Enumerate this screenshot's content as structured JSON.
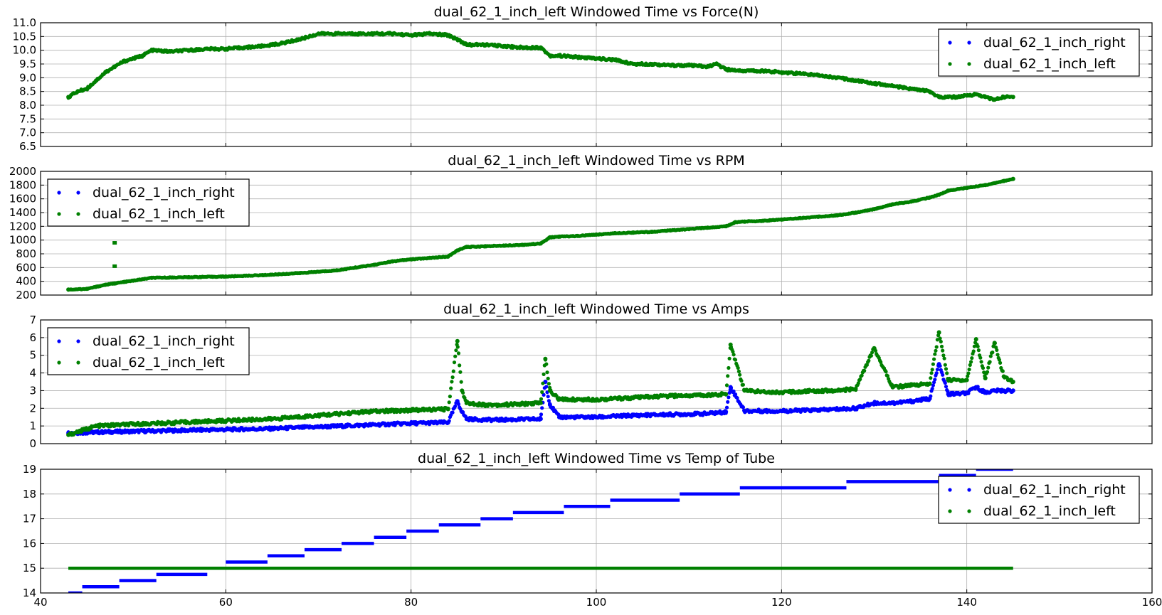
{
  "chart_data": [
    {
      "type": "scatter",
      "title": "dual_62_1_inch_left Windowed Time vs Force(N)",
      "xlim": [
        40,
        160
      ],
      "ylim": [
        6.5,
        11.0
      ],
      "x_ticks": [
        40,
        60,
        80,
        100,
        120,
        140,
        160
      ],
      "y_ticks": [
        "6.5",
        "7.0",
        "7.5",
        "8.0",
        "8.5",
        "9.0",
        "9.5",
        "10.0",
        "10.5",
        "11.0"
      ],
      "x_tick_labels_shown": false,
      "grid": true,
      "legend_position": "upper-right",
      "series": [
        {
          "name": "dual_62_1_inch_right",
          "color": "#0000ff",
          "visible_points": false
        },
        {
          "name": "dual_62_1_inch_left",
          "color": "#008000",
          "x": [
            43,
            44,
            45,
            46,
            47,
            48,
            49,
            50,
            51,
            52,
            54,
            56,
            58,
            60,
            62,
            64,
            66,
            68,
            70,
            72,
            74,
            76,
            78,
            80,
            82,
            84,
            85,
            86,
            88,
            90,
            92,
            94,
            95,
            96,
            98,
            100,
            102,
            104,
            106,
            108,
            110,
            112,
            113,
            114,
            116,
            118,
            120,
            122,
            124,
            126,
            128,
            130,
            132,
            134,
            136,
            137,
            138,
            139,
            140,
            141,
            142,
            143,
            144,
            145
          ],
          "y": [
            8.3,
            8.5,
            8.6,
            8.9,
            9.2,
            9.4,
            9.6,
            9.7,
            9.8,
            10.0,
            9.95,
            10.0,
            10.05,
            10.05,
            10.1,
            10.15,
            10.25,
            10.4,
            10.6,
            10.6,
            10.6,
            10.6,
            10.6,
            10.55,
            10.6,
            10.55,
            10.4,
            10.2,
            10.2,
            10.15,
            10.1,
            10.1,
            9.8,
            9.8,
            9.75,
            9.7,
            9.65,
            9.5,
            9.5,
            9.45,
            9.45,
            9.4,
            9.5,
            9.3,
            9.25,
            9.25,
            9.2,
            9.15,
            9.1,
            9.0,
            8.9,
            8.8,
            8.7,
            8.6,
            8.5,
            8.3,
            8.3,
            8.3,
            8.35,
            8.4,
            8.3,
            8.2,
            8.3,
            8.3
          ]
        }
      ]
    },
    {
      "type": "scatter",
      "title": "dual_62_1_inch_left Windowed Time vs RPM",
      "xlim": [
        40,
        160
      ],
      "ylim": [
        200,
        2000
      ],
      "x_ticks": [
        40,
        60,
        80,
        100,
        120,
        140,
        160
      ],
      "y_ticks": [
        "200",
        "400",
        "600",
        "800",
        "1000",
        "1200",
        "1400",
        "1600",
        "1800",
        "2000"
      ],
      "x_tick_labels_shown": false,
      "grid": true,
      "legend_position": "upper-left",
      "series": [
        {
          "name": "dual_62_1_inch_right",
          "color": "#0000ff",
          "visible_points": false
        },
        {
          "name": "dual_62_1_inch_left",
          "color": "#008000",
          "x": [
            43,
            45,
            46,
            47,
            48,
            49,
            50,
            52,
            56,
            60,
            64,
            68,
            72,
            74,
            76,
            78,
            80,
            82,
            84,
            85,
            86,
            88,
            90,
            92,
            94,
            95,
            96,
            98,
            100,
            102,
            104,
            106,
            108,
            110,
            112,
            114,
            115,
            116,
            118,
            120,
            122,
            124,
            126,
            128,
            130,
            132,
            134,
            136,
            137,
            138,
            140,
            142,
            144,
            145
          ],
          "y": [
            280,
            290,
            320,
            350,
            370,
            390,
            410,
            450,
            460,
            470,
            490,
            520,
            560,
            600,
            640,
            690,
            720,
            740,
            760,
            850,
            900,
            910,
            920,
            930,
            950,
            1040,
            1050,
            1060,
            1080,
            1100,
            1110,
            1120,
            1140,
            1160,
            1180,
            1200,
            1260,
            1270,
            1280,
            1300,
            1320,
            1340,
            1360,
            1400,
            1450,
            1520,
            1560,
            1620,
            1660,
            1720,
            1760,
            1800,
            1860,
            1890
          ]
        }
      ],
      "outliers_left": [
        {
          "x": 48,
          "y": 960
        },
        {
          "x": 48,
          "y": 620
        }
      ]
    },
    {
      "type": "scatter",
      "title": "dual_62_1_inch_left Windowed Time vs Amps",
      "xlim": [
        40,
        160
      ],
      "ylim": [
        0,
        7
      ],
      "x_ticks": [
        40,
        60,
        80,
        100,
        120,
        140,
        160
      ],
      "y_ticks": [
        "0",
        "1",
        "2",
        "3",
        "4",
        "5",
        "6",
        "7"
      ],
      "x_tick_labels_shown": false,
      "grid": true,
      "legend_position": "upper-left",
      "series": [
        {
          "name": "dual_62_1_inch_right",
          "color": "#0000ff",
          "x": [
            43,
            46,
            50,
            55,
            60,
            65,
            70,
            75,
            80,
            84,
            85,
            85.5,
            86,
            88,
            90,
            94,
            94.5,
            95,
            96,
            100,
            104,
            108,
            112,
            114,
            114.5,
            116,
            120,
            124,
            126,
            128,
            130,
            132,
            134,
            136,
            137,
            138,
            140,
            141,
            142,
            143,
            144,
            145
          ],
          "y": [
            0.6,
            0.65,
            0.7,
            0.75,
            0.8,
            0.85,
            0.95,
            1.05,
            1.15,
            1.2,
            2.4,
            1.8,
            1.4,
            1.35,
            1.35,
            1.4,
            3.5,
            2.2,
            1.5,
            1.5,
            1.6,
            1.65,
            1.7,
            1.8,
            3.2,
            1.85,
            1.85,
            1.9,
            1.95,
            2.0,
            2.3,
            2.3,
            2.4,
            2.55,
            4.5,
            2.8,
            2.85,
            3.2,
            2.9,
            3.0,
            3.0,
            3.0
          ]
        },
        {
          "name": "dual_62_1_inch_left",
          "color": "#008000",
          "x": [
            43,
            46,
            50,
            55,
            60,
            65,
            70,
            75,
            80,
            84,
            85,
            85.5,
            86,
            88,
            90,
            94,
            94.5,
            95,
            96,
            100,
            104,
            108,
            112,
            114,
            114.5,
            116,
            120,
            124,
            126,
            128,
            130,
            132,
            134,
            136,
            137,
            138,
            140,
            141,
            142,
            143,
            144,
            145
          ],
          "y": [
            0.5,
            1.0,
            1.1,
            1.2,
            1.3,
            1.4,
            1.6,
            1.8,
            1.9,
            1.95,
            5.8,
            3.0,
            2.3,
            2.2,
            2.2,
            2.3,
            4.8,
            3.0,
            2.5,
            2.5,
            2.6,
            2.7,
            2.75,
            2.8,
            5.6,
            3.0,
            2.9,
            3.0,
            3.0,
            3.1,
            5.4,
            3.2,
            3.3,
            3.4,
            6.3,
            3.6,
            3.6,
            5.9,
            3.7,
            5.7,
            3.8,
            3.5
          ]
        }
      ]
    },
    {
      "type": "scatter",
      "title": "dual_62_1_inch_left Windowed Time vs Temp of Tube",
      "xlim": [
        40,
        160
      ],
      "ylim": [
        14,
        19
      ],
      "x_ticks": [
        "40",
        "60",
        "80",
        "100",
        "120",
        "140",
        "160"
      ],
      "y_ticks": [
        "14",
        "15",
        "16",
        "17",
        "18",
        "19"
      ],
      "x_tick_labels_shown": true,
      "grid": true,
      "legend_position": "upper-right",
      "series": [
        {
          "name": "dual_62_1_inch_right",
          "color": "#0000ff",
          "steps": [
            {
              "x0": 43,
              "x1": 44.5,
              "y": 14.0
            },
            {
              "x0": 44.5,
              "x1": 48.5,
              "y": 14.25
            },
            {
              "x0": 48.5,
              "x1": 52.5,
              "y": 14.5
            },
            {
              "x0": 52.5,
              "x1": 58,
              "y": 14.75
            },
            {
              "x0": 60,
              "x1": 64.5,
              "y": 15.25
            },
            {
              "x0": 64.5,
              "x1": 68.5,
              "y": 15.5
            },
            {
              "x0": 68.5,
              "x1": 72.5,
              "y": 15.75
            },
            {
              "x0": 72.5,
              "x1": 76,
              "y": 16.0
            },
            {
              "x0": 76,
              "x1": 79.5,
              "y": 16.25
            },
            {
              "x0": 79.5,
              "x1": 83,
              "y": 16.5
            },
            {
              "x0": 83,
              "x1": 87.5,
              "y": 16.75
            },
            {
              "x0": 87.5,
              "x1": 91,
              "y": 17.0
            },
            {
              "x0": 91,
              "x1": 96.5,
              "y": 17.25
            },
            {
              "x0": 96.5,
              "x1": 101.5,
              "y": 17.5
            },
            {
              "x0": 101.5,
              "x1": 109,
              "y": 17.75
            },
            {
              "x0": 109,
              "x1": 115.5,
              "y": 18.0
            },
            {
              "x0": 115.5,
              "x1": 127,
              "y": 18.25
            },
            {
              "x0": 127,
              "x1": 137,
              "y": 18.5
            },
            {
              "x0": 137,
              "x1": 141,
              "y": 18.75
            },
            {
              "x0": 141,
              "x1": 145,
              "y": 19.0
            }
          ]
        },
        {
          "name": "dual_62_1_inch_left",
          "color": "#008000",
          "steps": [
            {
              "x0": 43,
              "x1": 145,
              "y": 15.0
            }
          ]
        }
      ]
    }
  ]
}
